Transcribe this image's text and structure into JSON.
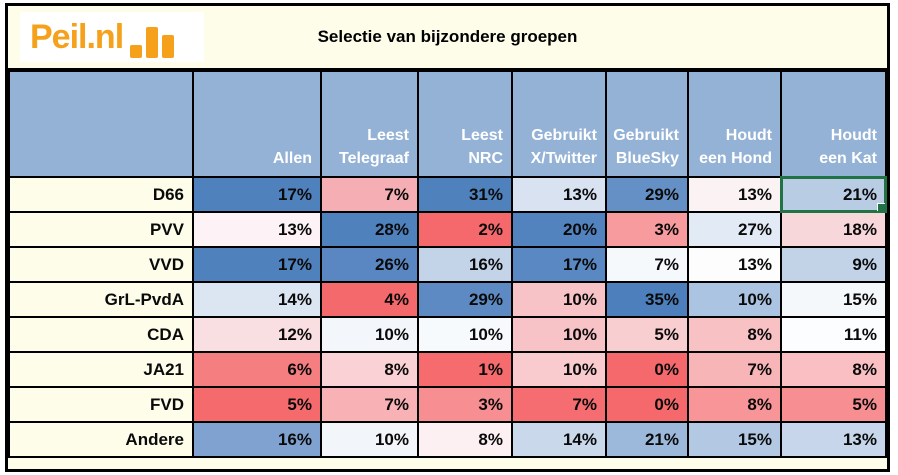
{
  "logo": {
    "text": "Peil.nl",
    "icon": "bar-chart-icon",
    "color": "#F5A11C"
  },
  "title": "Selectie van bijzondere groepen",
  "table": {
    "columns": [
      {
        "lines": [
          "",
          "Allen"
        ]
      },
      {
        "lines": [
          "Leest",
          "Telegraaf"
        ]
      },
      {
        "lines": [
          "Leest",
          "NRC"
        ]
      },
      {
        "lines": [
          "Gebruikt",
          "X/Twitter"
        ]
      },
      {
        "lines": [
          "Gebruikt",
          "BlueSky"
        ]
      },
      {
        "lines": [
          "Houdt",
          "een Hond"
        ]
      },
      {
        "lines": [
          "Houdt",
          "een Kat"
        ]
      }
    ],
    "rows": [
      {
        "label": "D66",
        "cells": [
          {
            "value": "17%",
            "bg": "#4F81BD"
          },
          {
            "value": "7%",
            "bg": "#F5AEB3"
          },
          {
            "value": "31%",
            "bg": "#4F81BD"
          },
          {
            "value": "13%",
            "bg": "#D8E2F0"
          },
          {
            "value": "29%",
            "bg": "#6590C6"
          },
          {
            "value": "13%",
            "bg": "#FBF2F4"
          },
          {
            "value": "21%",
            "bg": "#B8CCE4"
          }
        ]
      },
      {
        "label": "PVV",
        "cells": [
          {
            "value": "13%",
            "bg": "#FDF2F5"
          },
          {
            "value": "28%",
            "bg": "#4F81BD"
          },
          {
            "value": "2%",
            "bg": "#F5696C"
          },
          {
            "value": "20%",
            "bg": "#5283BF"
          },
          {
            "value": "3%",
            "bg": "#F89B9E"
          },
          {
            "value": "27%",
            "bg": "#E2EAF5"
          },
          {
            "value": "18%",
            "bg": "#F8D7DA"
          }
        ]
      },
      {
        "label": "VVD",
        "cells": [
          {
            "value": "17%",
            "bg": "#4F81BD"
          },
          {
            "value": "26%",
            "bg": "#5A87C2"
          },
          {
            "value": "16%",
            "bg": "#C3D4E9"
          },
          {
            "value": "17%",
            "bg": "#5988C3"
          },
          {
            "value": "7%",
            "bg": "#F6F9FC"
          },
          {
            "value": "13%",
            "bg": "#FDFDFE"
          },
          {
            "value": "9%",
            "bg": "#C2D3E8"
          }
        ]
      },
      {
        "label": "GrL-PvdA",
        "cells": [
          {
            "value": "14%",
            "bg": "#DCE6F2"
          },
          {
            "value": "4%",
            "bg": "#F4696B"
          },
          {
            "value": "29%",
            "bg": "#5D8AC3"
          },
          {
            "value": "10%",
            "bg": "#F8C3C6"
          },
          {
            "value": "35%",
            "bg": "#4C7FBC"
          },
          {
            "value": "10%",
            "bg": "#AAC4E1"
          },
          {
            "value": "15%",
            "bg": "#F5F8FB"
          }
        ]
      },
      {
        "label": "CDA",
        "cells": [
          {
            "value": "12%",
            "bg": "#FADFE2"
          },
          {
            "value": "10%",
            "bg": "#F3F7FB"
          },
          {
            "value": "10%",
            "bg": "#F7FAFD"
          },
          {
            "value": "10%",
            "bg": "#F8C3C6"
          },
          {
            "value": "5%",
            "bg": "#F9CED1"
          },
          {
            "value": "8%",
            "bg": "#F8C2C5"
          },
          {
            "value": "11%",
            "bg": "#FCFDFE"
          }
        ]
      },
      {
        "label": "JA21",
        "cells": [
          {
            "value": "6%",
            "bg": "#F57E81"
          },
          {
            "value": "8%",
            "bg": "#FAD1D4"
          },
          {
            "value": "1%",
            "bg": "#F56B6E"
          },
          {
            "value": "10%",
            "bg": "#F9CBCE"
          },
          {
            "value": "0%",
            "bg": "#F5696C"
          },
          {
            "value": "7%",
            "bg": "#F8B5B8"
          },
          {
            "value": "8%",
            "bg": "#F9BFC2"
          }
        ]
      },
      {
        "label": "FVD",
        "cells": [
          {
            "value": "5%",
            "bg": "#F56A6D"
          },
          {
            "value": "7%",
            "bg": "#F8B2B6"
          },
          {
            "value": "3%",
            "bg": "#F78F92"
          },
          {
            "value": "7%",
            "bg": "#F56D70"
          },
          {
            "value": "0%",
            "bg": "#F5696C"
          },
          {
            "value": "8%",
            "bg": "#F79598"
          },
          {
            "value": "5%",
            "bg": "#F78F92"
          }
        ]
      },
      {
        "label": "Andere",
        "cells": [
          {
            "value": "16%",
            "bg": "#80A2D1"
          },
          {
            "value": "10%",
            "bg": "#F2F6FA"
          },
          {
            "value": "8%",
            "bg": "#FDF0F2"
          },
          {
            "value": "14%",
            "bg": "#C9D8EB"
          },
          {
            "value": "21%",
            "bg": "#9CB9DC"
          },
          {
            "value": "15%",
            "bg": "#B3C9E3"
          },
          {
            "value": "13%",
            "bg": "#C7D6EA"
          }
        ]
      }
    ],
    "selection": {
      "row_index": 0,
      "col_index": 6,
      "row_label": "D66",
      "column": "Houdt een Kat",
      "border_color": "#217346"
    }
  },
  "colors": {
    "sheet_background": "#FDFDE9",
    "header_background": "#94B2D6",
    "heatmap_max_blue": "#4F81BD",
    "heatmap_min_red": "#F5696C",
    "grid_border": "#000000",
    "logo_orange": "#F5A11C",
    "selection_green": "#217346"
  },
  "chart_data": {
    "type": "table",
    "title": "Selectie van bijzondere groepen",
    "columns": [
      "Allen",
      "Leest Telegraaf",
      "Leest NRC",
      "Gebruikt X/Twitter",
      "Gebruikt BlueSky",
      "Houdt een Hond",
      "Houdt een Kat"
    ],
    "rows": [
      "D66",
      "PVV",
      "VVD",
      "GrL-PvdA",
      "CDA",
      "JA21",
      "FVD",
      "Andere"
    ],
    "values_percent": [
      [
        17,
        7,
        31,
        13,
        29,
        13,
        21
      ],
      [
        13,
        28,
        2,
        20,
        3,
        27,
        18
      ],
      [
        17,
        26,
        16,
        17,
        7,
        13,
        9
      ],
      [
        14,
        4,
        29,
        10,
        35,
        10,
        15
      ],
      [
        12,
        10,
        10,
        10,
        5,
        8,
        11
      ],
      [
        6,
        8,
        1,
        10,
        0,
        7,
        8
      ],
      [
        5,
        7,
        3,
        7,
        0,
        8,
        5
      ],
      [
        16,
        10,
        8,
        14,
        21,
        15,
        13
      ]
    ],
    "legend": "cell shading is a red(low)-white-blue(high) heatmap per column"
  }
}
